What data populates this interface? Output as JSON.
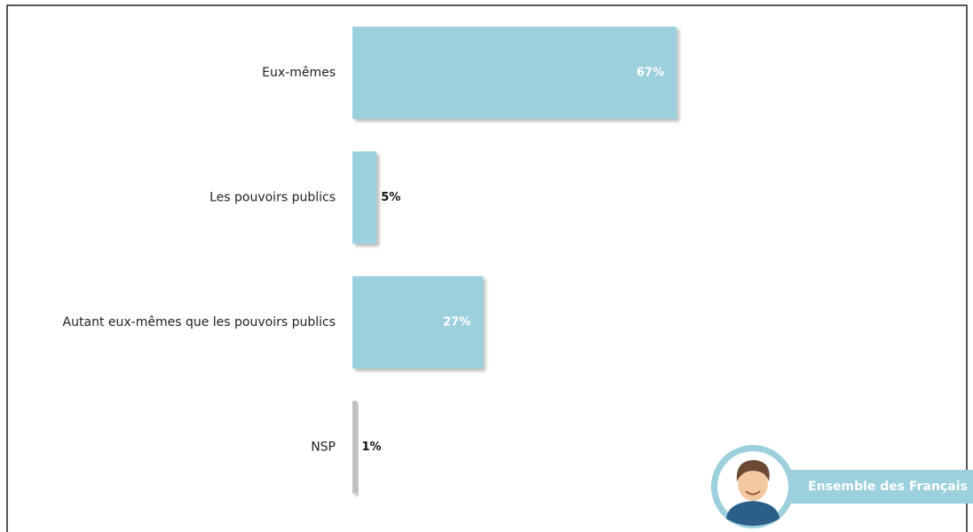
{
  "chart_data": {
    "type": "hbar",
    "categories": [
      "Eux-mêmes",
      "Les pouvoirs publics",
      "Autant eux-mêmes que les pouvoirs publics",
      "NSP"
    ],
    "values": [
      67,
      5,
      27,
      1
    ],
    "value_labels": [
      "67%",
      "5%",
      "27%",
      "1%"
    ],
    "colors": [
      "#9bd0dc",
      "#9bd0dc",
      "#9bd0dc",
      "#c0c0c0"
    ],
    "badge": "Ensemble des Français"
  }
}
